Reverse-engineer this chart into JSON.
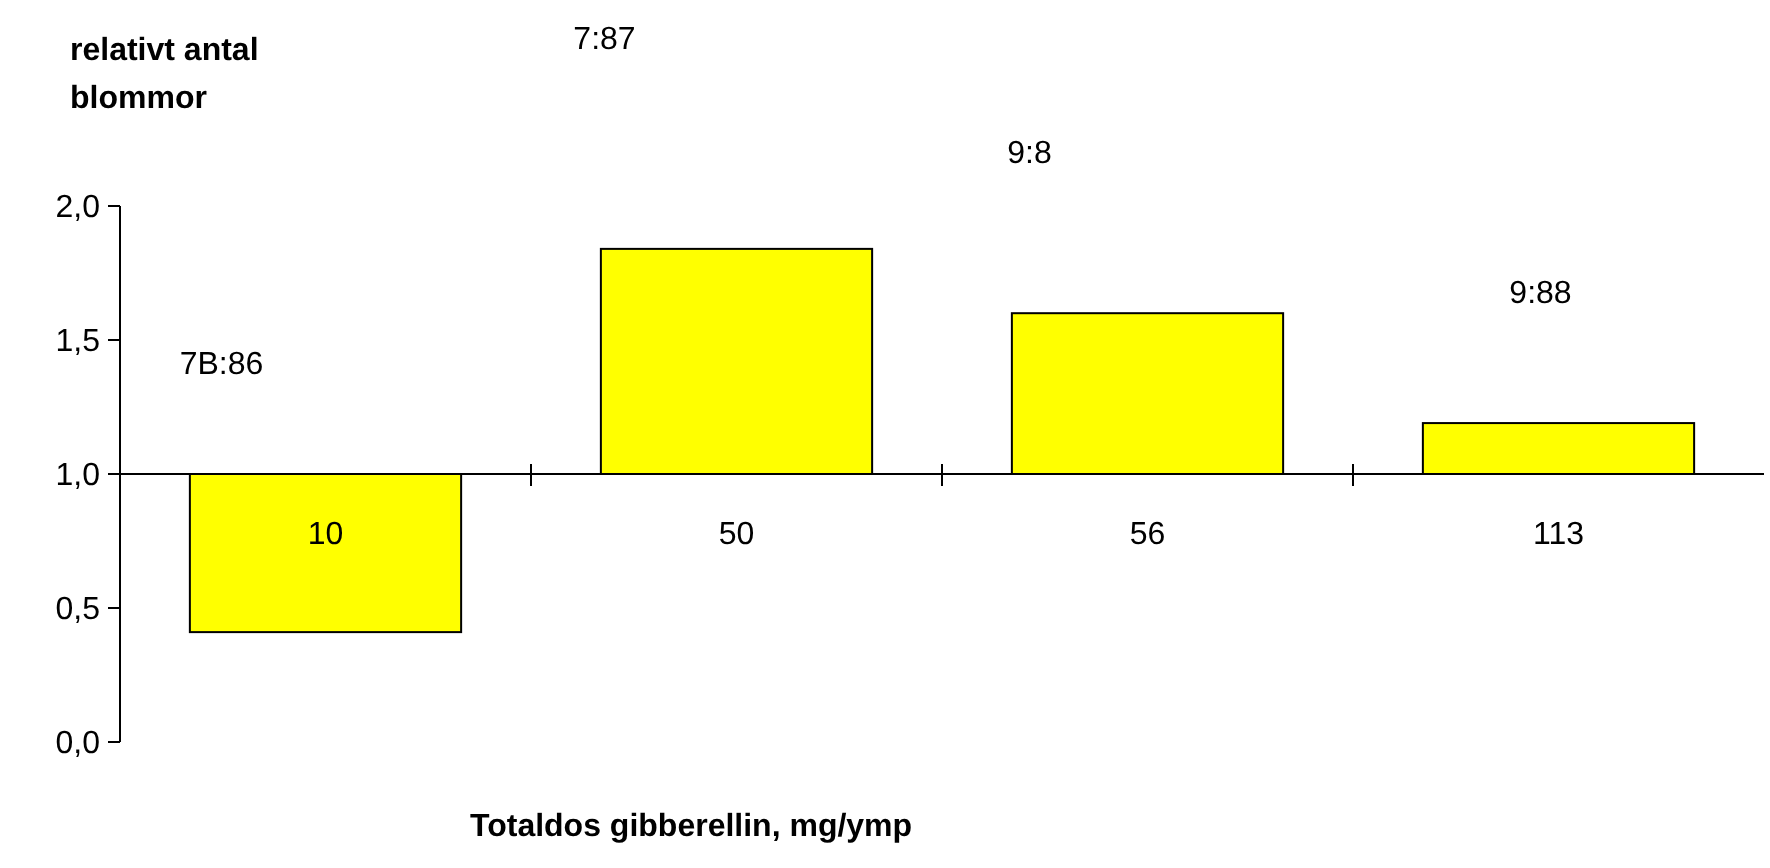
{
  "chart_data": {
    "type": "bar",
    "ylabel": "relativt antal blommor",
    "xlabel": "Totaldos gibberellin, mg/ymp",
    "categories": [
      "10",
      "50",
      "56",
      "113"
    ],
    "values": [
      -0.59,
      0.84,
      0.6,
      0.19
    ],
    "base": [
      1,
      1,
      1,
      1
    ],
    "color": "#ffff00",
    "ylim": [
      0,
      2
    ],
    "yticks": [
      {
        "value": 0,
        "label": "0,0"
      },
      {
        "value": 0.5,
        "label": "0,5"
      },
      {
        "value": 1,
        "label": "1,0"
      },
      {
        "value": 1.5,
        "label": "1,5"
      },
      {
        "value": 2,
        "label": "2,0"
      }
    ],
    "grid": false,
    "annotations": [
      "7B:86",
      "7:87",
      "9:8",
      "9:88"
    ]
  }
}
